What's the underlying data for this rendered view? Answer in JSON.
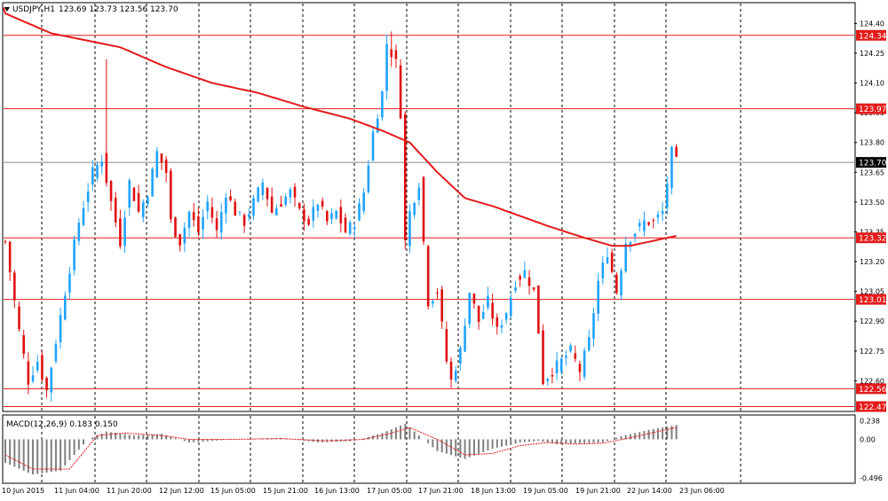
{
  "header": {
    "symbol_label": "USDJPY,H1",
    "ohlc_label": "123.69 123.73 123.56 123.70"
  },
  "indicator": {
    "label": "MACD(12,26,9) 0.183 0.150",
    "ticks": [
      "0.238",
      "0.00",
      "-0.496"
    ]
  },
  "colors": {
    "background": "#ffffff",
    "bull": "#1fa3ff",
    "bear": "#e01010",
    "ma_line": "#e41b1b",
    "level_line": "#e41b1b",
    "grid": "#000000",
    "current_price_tag": "#000000",
    "macd_hist": "#7f7f7f",
    "macd_signal": "#e41b1b"
  },
  "chart_data": {
    "type": "candlestick",
    "title": "USDJPY,H1",
    "y_axis_ticks": [
      "124.40",
      "124.25",
      "124.10",
      "123.95",
      "123.80",
      "123.65",
      "123.50",
      "123.35",
      "123.20",
      "123.05",
      "122.90",
      "122.75",
      "122.60"
    ],
    "ylim": [
      122.45,
      124.5
    ],
    "x_axis_ticks": [
      "10 Jun 2015",
      "11 Jun 04:00",
      "11 Jun 20:00",
      "12 Jun 12:00",
      "15 Jun 05:00",
      "15 Jun 21:00",
      "16 Jun 13:00",
      "17 Jun 05:00",
      "17 Jun 21:00",
      "18 Jun 13:00",
      "19 Jun 05:00",
      "19 Jun 21:00",
      "22 Jun 14:00",
      "23 Jun 06:00"
    ],
    "grid": "vertical dashed",
    "current_price": "123.70",
    "horizontal_levels": [
      "124.34",
      "123.97",
      "123.32",
      "123.01",
      "122.56",
      "122.47"
    ],
    "price_path": [
      [
        0,
        123.3
      ],
      [
        3,
        122.85
      ],
      [
        5,
        122.6
      ],
      [
        7,
        122.7
      ],
      [
        9,
        122.55
      ],
      [
        11,
        122.8
      ],
      [
        13,
        123.05
      ],
      [
        16,
        123.4
      ],
      [
        19,
        123.65
      ],
      [
        21,
        123.72
      ],
      [
        23,
        123.5
      ],
      [
        25,
        123.3
      ],
      [
        27,
        123.6
      ],
      [
        29,
        123.45
      ],
      [
        31,
        123.55
      ],
      [
        33,
        123.75
      ],
      [
        35,
        123.65
      ],
      [
        36,
        123.4
      ],
      [
        38,
        123.3
      ],
      [
        40,
        123.45
      ],
      [
        42,
        123.35
      ],
      [
        44,
        123.5
      ],
      [
        46,
        123.35
      ],
      [
        48,
        123.55
      ],
      [
        50,
        123.45
      ],
      [
        52,
        123.4
      ],
      [
        54,
        123.5
      ],
      [
        56,
        123.6
      ],
      [
        58,
        123.45
      ],
      [
        60,
        123.5
      ],
      [
        62,
        123.55
      ],
      [
        64,
        123.45
      ],
      [
        66,
        123.4
      ],
      [
        68,
        123.5
      ],
      [
        70,
        123.4
      ],
      [
        72,
        123.45
      ],
      [
        74,
        123.35
      ],
      [
        76,
        123.4
      ],
      [
        78,
        123.55
      ],
      [
        80,
        123.85
      ],
      [
        82,
        124.05
      ],
      [
        83,
        124.3
      ],
      [
        85,
        124.2
      ],
      [
        86,
        123.95
      ],
      [
        87,
        123.3
      ],
      [
        88,
        123.45
      ],
      [
        90,
        123.6
      ],
      [
        91,
        123.3
      ],
      [
        92,
        123.0
      ],
      [
        94,
        123.05
      ],
      [
        96,
        122.7
      ],
      [
        97,
        122.6
      ],
      [
        99,
        122.75
      ],
      [
        101,
        123.05
      ],
      [
        103,
        122.9
      ],
      [
        105,
        123.0
      ],
      [
        107,
        122.85
      ],
      [
        109,
        122.95
      ],
      [
        111,
        123.1
      ],
      [
        113,
        123.15
      ],
      [
        115,
        123.05
      ],
      [
        116,
        122.85
      ],
      [
        117,
        122.6
      ],
      [
        119,
        122.65
      ],
      [
        121,
        122.7
      ],
      [
        123,
        122.75
      ],
      [
        125,
        122.65
      ],
      [
        127,
        122.8
      ],
      [
        129,
        123.1
      ],
      [
        131,
        123.25
      ],
      [
        133,
        123.05
      ],
      [
        135,
        123.3
      ],
      [
        137,
        123.35
      ],
      [
        139,
        123.4
      ],
      [
        141,
        123.4
      ],
      [
        143,
        123.45
      ],
      [
        145,
        123.75
      ],
      [
        146,
        123.7
      ]
    ],
    "ma_path": [
      [
        0,
        124.45
      ],
      [
        10,
        124.35
      ],
      [
        25,
        124.28
      ],
      [
        35,
        124.18
      ],
      [
        45,
        124.1
      ],
      [
        55,
        124.05
      ],
      [
        65,
        123.98
      ],
      [
        75,
        123.92
      ],
      [
        82,
        123.86
      ],
      [
        88,
        123.8
      ],
      [
        94,
        123.65
      ],
      [
        100,
        123.52
      ],
      [
        106,
        123.48
      ],
      [
        112,
        123.43
      ],
      [
        118,
        123.38
      ],
      [
        126,
        123.32
      ],
      [
        132,
        123.28
      ],
      [
        136,
        123.28
      ],
      [
        140,
        123.3
      ],
      [
        146,
        123.33
      ]
    ],
    "macd_hist_path": [
      [
        0,
        -0.3
      ],
      [
        6,
        -0.45
      ],
      [
        12,
        -0.4
      ],
      [
        18,
        0.0
      ],
      [
        22,
        0.1
      ],
      [
        28,
        0.05
      ],
      [
        34,
        0.07
      ],
      [
        40,
        -0.04
      ],
      [
        50,
        0.0
      ],
      [
        60,
        0.02
      ],
      [
        68,
        -0.04
      ],
      [
        76,
        -0.02
      ],
      [
        82,
        0.08
      ],
      [
        87,
        0.2
      ],
      [
        90,
        0.05
      ],
      [
        94,
        -0.15
      ],
      [
        100,
        -0.25
      ],
      [
        106,
        -0.12
      ],
      [
        112,
        -0.04
      ],
      [
        116,
        -0.02
      ],
      [
        120,
        -0.06
      ],
      [
        126,
        -0.05
      ],
      [
        130,
        -0.04
      ],
      [
        134,
        0.04
      ],
      [
        140,
        0.12
      ],
      [
        146,
        0.183
      ]
    ],
    "macd_signal_path": [
      [
        0,
        -0.2
      ],
      [
        6,
        -0.38
      ],
      [
        14,
        -0.38
      ],
      [
        20,
        0.05
      ],
      [
        26,
        0.08
      ],
      [
        34,
        0.05
      ],
      [
        40,
        0.0
      ],
      [
        50,
        0.0
      ],
      [
        60,
        0.01
      ],
      [
        70,
        -0.02
      ],
      [
        78,
        0.0
      ],
      [
        84,
        0.08
      ],
      [
        88,
        0.15
      ],
      [
        94,
        0.0
      ],
      [
        100,
        -0.2
      ],
      [
        106,
        -0.18
      ],
      [
        112,
        -0.08
      ],
      [
        118,
        -0.04
      ],
      [
        124,
        -0.06
      ],
      [
        130,
        -0.05
      ],
      [
        136,
        0.02
      ],
      [
        142,
        0.1
      ],
      [
        146,
        0.15
      ]
    ]
  }
}
